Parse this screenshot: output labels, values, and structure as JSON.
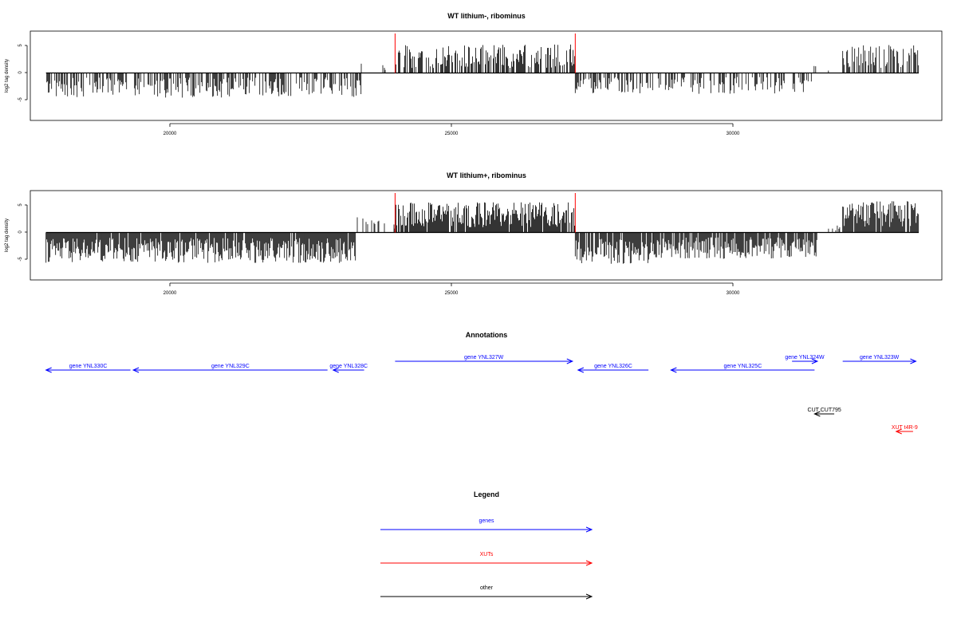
{
  "panels": [
    {
      "title": "WT lithium-, ribominus",
      "ylabel": "log2 tag density",
      "yticks": [
        "5",
        "0",
        "-5"
      ],
      "xticks": [
        "20000",
        "25000",
        "30000"
      ],
      "markers": [
        24000,
        27200
      ]
    },
    {
      "title": "WT lithium+, ribominus",
      "ylabel": "log2 tag density",
      "yticks": [
        "5",
        "0",
        "-5"
      ],
      "xticks": [
        "20000",
        "25000",
        "30000"
      ],
      "markers": [
        24000,
        27200
      ]
    }
  ],
  "annotations": {
    "title": "Annotations",
    "features": [
      {
        "label": "gene YNL330C",
        "start": 17800,
        "end": 19300,
        "strand": "-",
        "kind": "genes",
        "row": 1
      },
      {
        "label": "gene YNL329C",
        "start": 19350,
        "end": 22800,
        "strand": "-",
        "kind": "genes",
        "row": 1
      },
      {
        "label": "gene YNL328C",
        "start": 22900,
        "end": 23450,
        "strand": "-",
        "kind": "genes",
        "row": 1
      },
      {
        "label": "gene YNL327W",
        "start": 24000,
        "end": 27150,
        "strand": "+",
        "kind": "genes",
        "row": 0
      },
      {
        "label": "gene YNL326C",
        "start": 27250,
        "end": 28500,
        "strand": "-",
        "kind": "genes",
        "row": 1
      },
      {
        "label": "gene YNL325C",
        "start": 28900,
        "end": 31450,
        "strand": "-",
        "kind": "genes",
        "row": 1
      },
      {
        "label": "gene YNL324W",
        "start": 31050,
        "end": 31500,
        "strand": "+",
        "kind": "genes",
        "row": 0
      },
      {
        "label": "gene YNL323W",
        "start": 31950,
        "end": 33250,
        "strand": "+",
        "kind": "genes",
        "row": 0
      },
      {
        "label": "CUT CUT795",
        "start": 31450,
        "end": 31800,
        "strand": "-",
        "kind": "other",
        "row": 6
      },
      {
        "label": "XUT t4R-9",
        "start": 32900,
        "end": 33200,
        "strand": "-",
        "kind": "XUTs",
        "row": 8
      }
    ]
  },
  "legend": {
    "title": "Legend",
    "items": [
      {
        "label": "genes",
        "color": "#0000ff"
      },
      {
        "label": "XUTs",
        "color": "#ff0000"
      },
      {
        "label": "other",
        "color": "#000000"
      }
    ]
  },
  "chart_data": [
    {
      "type": "bar",
      "title": "WT lithium-, ribominus",
      "xlabel": "",
      "ylabel": "log2 tag density",
      "xlim": [
        17300,
        33700
      ],
      "ylim": [
        -8.5,
        7.5
      ],
      "markers_x": [
        24000,
        27200
      ],
      "regions": [
        {
          "start": 17800,
          "end": 23400,
          "mean": -2.6,
          "density": 0.55
        },
        {
          "start": 23400,
          "end": 24000,
          "mean": 1.2,
          "density": 0.12
        },
        {
          "start": 24000,
          "end": 27200,
          "mean": 3.0,
          "density": 0.6
        },
        {
          "start": 27200,
          "end": 31400,
          "mean": -2.2,
          "density": 0.4
        },
        {
          "start": 31400,
          "end": 31950,
          "mean": 0.8,
          "density": 0.05
        },
        {
          "start": 31950,
          "end": 33300,
          "mean": 3.0,
          "density": 0.55
        }
      ]
    },
    {
      "type": "bar",
      "title": "WT lithium+, ribominus",
      "xlabel": "",
      "ylabel": "log2 tag density",
      "xlim": [
        17300,
        33700
      ],
      "ylim": [
        -8.5,
        7.5
      ],
      "markers_x": [
        24000,
        27200
      ],
      "regions": [
        {
          "start": 17800,
          "end": 23300,
          "mean": -3.2,
          "density": 0.95
        },
        {
          "start": 23300,
          "end": 24000,
          "mean": 1.8,
          "density": 0.2
        },
        {
          "start": 24000,
          "end": 27200,
          "mean": 3.2,
          "density": 0.95
        },
        {
          "start": 27200,
          "end": 28600,
          "mean": -3.3,
          "density": 0.9
        },
        {
          "start": 28600,
          "end": 31500,
          "mean": -2.8,
          "density": 0.85
        },
        {
          "start": 31500,
          "end": 31950,
          "mean": 0.8,
          "density": 0.1
        },
        {
          "start": 31950,
          "end": 33300,
          "mean": 3.3,
          "density": 0.9
        }
      ]
    }
  ],
  "colors": {
    "genes": "#0000ff",
    "XUTs": "#ff0000",
    "other": "#000000",
    "marker": "#ff0000"
  }
}
